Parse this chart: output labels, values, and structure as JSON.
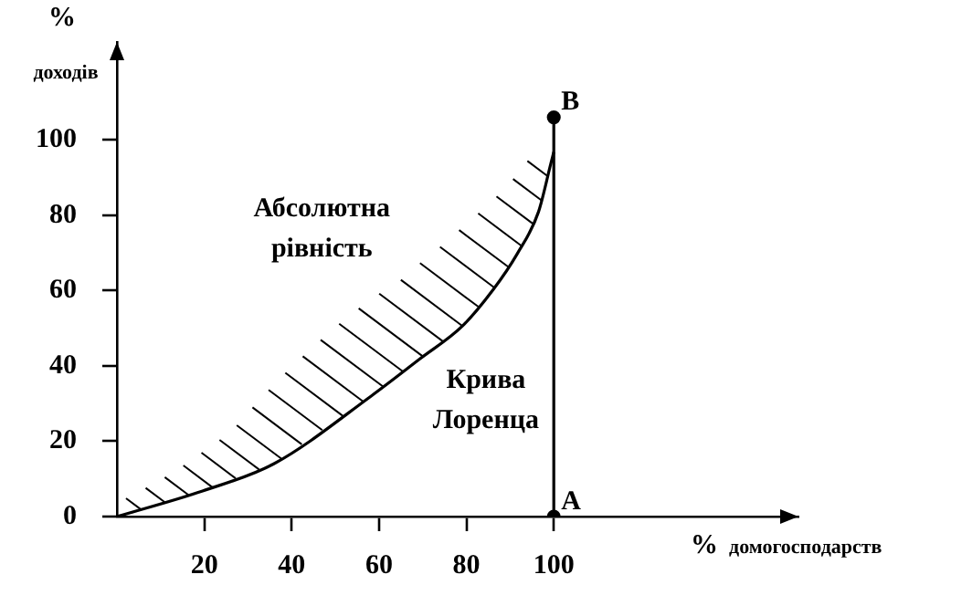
{
  "chart_data": {
    "type": "line",
    "xlabel": "% домогосподарств",
    "ylabel": "% доходів",
    "xlim": [
      0,
      156
    ],
    "ylim": [
      0,
      126
    ],
    "xticks": [
      20,
      40,
      60,
      80,
      100
    ],
    "yticks": [
      0,
      20,
      40,
      60,
      80,
      100
    ],
    "grid": false,
    "legend": false,
    "line_style": "solid",
    "series": [
      {
        "color": "#000000",
        "marker": "none",
        "x": [
          0,
          19.6,
          35.9,
          58.2,
          69.4,
          79.1,
          86.1,
          91.6,
          96.5,
          99.3,
          100
        ],
        "values": [
          0,
          6.8,
          14,
          32,
          41.9,
          50.6,
          60.2,
          69.7,
          80.9,
          93.6,
          96.8
        ]
      },
      {
        "color": "#000000",
        "marker": "circle",
        "x": [
          100,
          100
        ],
        "values": [
          0,
          106
        ]
      }
    ],
    "annotations": [
      {
        "text": "A",
        "x": 100,
        "y": 0
      },
      {
        "text": "B",
        "x": 100,
        "y": 106
      },
      {
        "text": "Абсолютна рівність",
        "x": 79.1,
        "y": 50.6
      },
      {
        "text": "Крива Лоренца",
        "x": 69.4,
        "y": 41.9
      }
    ]
  }
}
